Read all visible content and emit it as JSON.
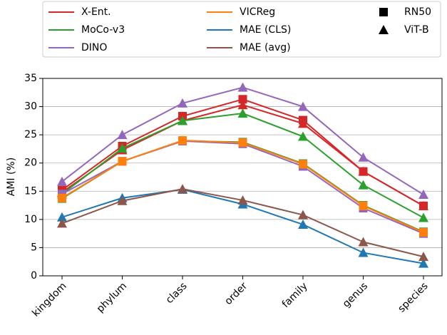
{
  "chart_data": {
    "type": "line",
    "y_label": "AMI (%)",
    "categories": [
      "kingdom",
      "phylum",
      "class",
      "order",
      "family",
      "genus",
      "species"
    ],
    "ylim": [
      0,
      35
    ],
    "yticks": [
      0,
      5,
      10,
      15,
      20,
      25,
      30,
      35
    ],
    "grid": true,
    "markers": [
      {
        "name": "RN50",
        "marker": "square"
      },
      {
        "name": "ViT-B",
        "marker": "triangle"
      }
    ],
    "series": [
      {
        "name": "X-Ent.",
        "color": "#d62728",
        "values": [
          [
            15.2,
            23.0,
            28.3,
            31.3,
            27.6,
            18.5,
            12.4
          ],
          [
            14.8,
            22.3,
            27.5,
            30.3,
            27.0,
            18.5,
            12.4
          ]
        ]
      },
      {
        "name": "MoCo-v3",
        "color": "#2ca02c",
        "values": [
          [
            13.7,
            20.3,
            23.9,
            23.7,
            19.9,
            12.5,
            7.8
          ],
          [
            14.5,
            22.6,
            27.5,
            28.8,
            24.7,
            16.1,
            10.3
          ]
        ]
      },
      {
        "name": "DINO",
        "color": "#9467bd",
        "values": [
          [
            14.5,
            20.3,
            23.9,
            23.4,
            19.4,
            12.0,
            7.5
          ],
          [
            16.7,
            25.0,
            30.6,
            33.4,
            30.0,
            21.0,
            14.4
          ]
        ]
      },
      {
        "name": "VICReg",
        "color": "#ff7f0e",
        "values": [
          [
            13.8,
            20.3,
            24.0,
            23.6,
            19.8,
            12.4,
            7.7
          ],
          null
        ]
      },
      {
        "name": "MAE (CLS)",
        "color": "#1f77b4",
        "values": [
          null,
          [
            10.4,
            13.8,
            15.3,
            12.7,
            9.1,
            4.1,
            2.2
          ]
        ]
      },
      {
        "name": "MAE (avg)",
        "color": "#8c564b",
        "values": [
          null,
          [
            9.3,
            13.3,
            15.4,
            13.4,
            10.8,
            6.0,
            3.4
          ]
        ]
      }
    ]
  }
}
